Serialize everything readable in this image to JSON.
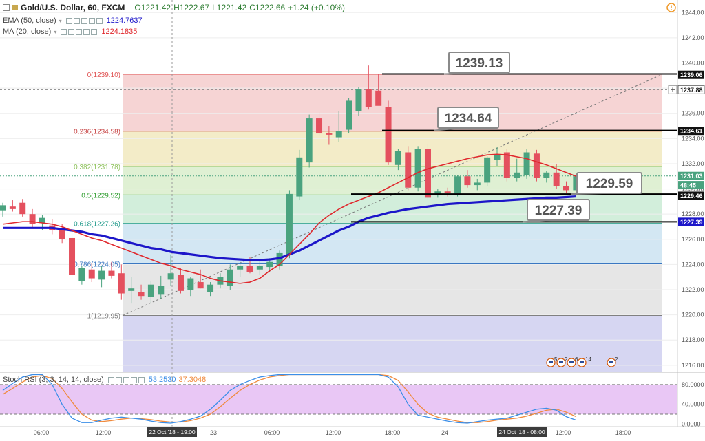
{
  "header": {
    "symbol": "Gold/U.S. Dollar, 60, FXCM",
    "ohlc": {
      "o": "O1221.42",
      "h": "H1222.67",
      "l": "L1221.42",
      "c": "C1222.66",
      "change": "+1.24 (+0.10%)"
    },
    "ema_label": "EMA (50, close)",
    "ema_value": "1224.7637",
    "ma_label": "MA (20, close)",
    "ma_value": "1224.1835",
    "stoch_label": "Stoch RSI (3, 3, 14, 14, close)",
    "stoch_k": "53.2530",
    "stoch_d": "37.3048"
  },
  "colors": {
    "up": "#4aa37f",
    "down": "#e4505e",
    "ema": "#1c16c9",
    "ma": "#e0282d",
    "stoch_k": "#3b8ee8",
    "stoch_d": "#f08a3c",
    "stoch_band": "#e9c7f5"
  },
  "chart_data": [
    {
      "type": "candlestick",
      "ylim": [
        1215.5,
        1245
      ],
      "y_ticks": [
        "1244.00",
        "1242.00",
        "1240.00",
        "1238.00",
        "1236.00",
        "1234.00",
        "1232.00",
        "1230.00",
        "1228.00",
        "1226.00",
        "1224.00",
        "1222.00",
        "1220.00",
        "1218.00",
        "1216.00"
      ],
      "x_ticks": [
        "06:00",
        "12:00",
        "22 Oct '18 - 19:00",
        "23",
        "06:00",
        "12:00",
        "18:00",
        "24",
        "24 Oct '18 - 08:00",
        "12:00",
        "18:00"
      ],
      "candles": [
        [
          1228.3,
          1228.9,
          1227.8,
          1228.7
        ],
        [
          1228.6,
          1229.1,
          1228.2,
          1228.4
        ],
        [
          1228.9,
          1229.2,
          1227.8,
          1228.0
        ],
        [
          1228.0,
          1228.4,
          1226.9,
          1227.2
        ],
        [
          1227.3,
          1227.9,
          1226.7,
          1227.7
        ],
        [
          1227.1,
          1227.6,
          1226.4,
          1226.7
        ],
        [
          1226.8,
          1227.2,
          1225.7,
          1226.0
        ],
        [
          1226.1,
          1226.4,
          1222.9,
          1223.2
        ],
        [
          1222.7,
          1223.9,
          1222.4,
          1223.7
        ],
        [
          1223.6,
          1224.1,
          1222.6,
          1222.9
        ],
        [
          1222.8,
          1223.9,
          1222.2,
          1223.5
        ],
        [
          1223.5,
          1224.2,
          1222.9,
          1223.1
        ],
        [
          1223.3,
          1224.0,
          1221.2,
          1221.7
        ],
        [
          1221.9,
          1223.0,
          1220.9,
          1222.1
        ],
        [
          1221.8,
          1222.4,
          1221.2,
          1221.5
        ],
        [
          1221.4,
          1222.7,
          1220.9,
          1222.4
        ],
        [
          1221.6,
          1223.1,
          1221.3,
          1222.3
        ],
        [
          1222.8,
          1224.8,
          1222.3,
          1223.3
        ],
        [
          1223.2,
          1223.7,
          1221.7,
          1221.9
        ],
        [
          1222.0,
          1223.0,
          1221.5,
          1222.9
        ],
        [
          1222.6,
          1223.6,
          1222.1,
          1222.1
        ],
        [
          1221.8,
          1222.6,
          1221.5,
          1222.4
        ],
        [
          1222.4,
          1223.3,
          1222.1,
          1223.0
        ],
        [
          1222.3,
          1224.0,
          1222.0,
          1223.6
        ],
        [
          1223.6,
          1224.2,
          1223.0,
          1223.9
        ],
        [
          1223.9,
          1224.6,
          1223.3,
          1223.4
        ],
        [
          1223.6,
          1224.3,
          1223.2,
          1223.9
        ],
        [
          1223.8,
          1224.5,
          1223.4,
          1224.2
        ],
        [
          1223.9,
          1225.1,
          1223.6,
          1224.9
        ],
        [
          1224.8,
          1229.9,
          1224.5,
          1229.6
        ],
        [
          1229.4,
          1233.1,
          1229.1,
          1232.5
        ],
        [
          1232.1,
          1235.9,
          1231.7,
          1235.6
        ],
        [
          1235.6,
          1236.1,
          1234.2,
          1234.4
        ],
        [
          1234.4,
          1235.0,
          1233.5,
          1234.3
        ],
        [
          1234.1,
          1236.2,
          1233.7,
          1234.6
        ],
        [
          1234.7,
          1237.2,
          1234.4,
          1237.0
        ],
        [
          1236.2,
          1238.1,
          1235.8,
          1237.9
        ],
        [
          1237.9,
          1239.8,
          1236.3,
          1236.5
        ],
        [
          1237.8,
          1239.1,
          1236.8,
          1236.6
        ],
        [
          1236.5,
          1237.0,
          1231.9,
          1232.1
        ],
        [
          1231.9,
          1233.2,
          1231.5,
          1233.0
        ],
        [
          1232.9,
          1233.4,
          1229.9,
          1230.1
        ],
        [
          1230.1,
          1233.4,
          1229.8,
          1233.2
        ],
        [
          1233.2,
          1233.6,
          1229.1,
          1229.3
        ],
        [
          1229.6,
          1230.0,
          1229.3,
          1229.8
        ],
        [
          1229.8,
          1230.1,
          1229.4,
          1229.7
        ],
        [
          1229.6,
          1231.1,
          1229.4,
          1231.0
        ],
        [
          1231.0,
          1231.5,
          1230.1,
          1230.3
        ],
        [
          1230.3,
          1230.8,
          1229.9,
          1230.5
        ],
        [
          1230.5,
          1232.6,
          1230.2,
          1232.5
        ],
        [
          1232.3,
          1233.3,
          1231.8,
          1232.7
        ],
        [
          1232.9,
          1233.2,
          1230.6,
          1230.9
        ],
        [
          1230.9,
          1232.4,
          1230.6,
          1231.3
        ],
        [
          1231.1,
          1233.2,
          1230.8,
          1232.9
        ],
        [
          1232.8,
          1233.1,
          1230.6,
          1230.9
        ],
        [
          1230.9,
          1231.4,
          1230.5,
          1231.3
        ],
        [
          1231.3,
          1232.0,
          1230.0,
          1230.2
        ],
        [
          1230.2,
          1230.6,
          1229.7,
          1229.9
        ],
        [
          1229.9,
          1231.2,
          1229.7,
          1231.0
        ]
      ],
      "ema_50": [
        1226.9,
        1226.9,
        1226.9,
        1226.9,
        1226.9,
        1226.9,
        1226.8,
        1226.7,
        1226.6,
        1226.4,
        1226.3,
        1226.1,
        1225.9,
        1225.7,
        1225.5,
        1225.3,
        1225.2,
        1225.0,
        1224.9,
        1224.8,
        1224.7,
        1224.6,
        1224.5,
        1224.45,
        1224.4,
        1224.35,
        1224.35,
        1224.4,
        1224.5,
        1224.8,
        1225.1,
        1225.5,
        1225.9,
        1226.3,
        1226.7,
        1227.0,
        1227.4,
        1227.7,
        1227.9,
        1228.1,
        1228.25,
        1228.4,
        1228.5,
        1228.6,
        1228.7,
        1228.8,
        1228.85,
        1228.9,
        1228.95,
        1229.0,
        1229.05,
        1229.1,
        1229.15,
        1229.2,
        1229.25,
        1229.3,
        1229.3,
        1229.35,
        1229.4
      ],
      "ma_20": [
        1227.2,
        1227.3,
        1227.4,
        1227.4,
        1227.3,
        1227.2,
        1227.0,
        1226.7,
        1226.4,
        1226.1,
        1225.9,
        1225.6,
        1225.3,
        1225.0,
        1224.7,
        1224.4,
        1224.1,
        1223.9,
        1223.6,
        1223.4,
        1223.2,
        1222.9,
        1222.7,
        1222.6,
        1222.5,
        1222.6,
        1222.9,
        1223.5,
        1224.0,
        1224.8,
        1225.6,
        1226.4,
        1227.3,
        1227.9,
        1228.4,
        1228.8,
        1229.1,
        1229.4,
        1229.7,
        1230.1,
        1230.5,
        1230.9,
        1231.3,
        1231.6,
        1231.8,
        1232.0,
        1232.2,
        1232.4,
        1232.55,
        1232.7,
        1232.75,
        1232.7,
        1232.55,
        1232.4,
        1232.15,
        1231.9,
        1231.6,
        1231.3,
        1231.0
      ]
    },
    {
      "type": "line",
      "title": "Stoch RSI (3, 3, 14, 14, close)",
      "ylim": [
        -5,
        102
      ],
      "y_ticks": [
        "80.0000",
        "40.0000",
        "0.0000"
      ],
      "band": [
        20,
        80
      ],
      "series": [
        {
          "name": "K",
          "values": [
            68,
            82,
            95,
            100,
            100,
            80,
            40,
            12,
            3,
            3,
            8,
            12,
            14,
            12,
            10,
            6,
            3,
            2,
            5,
            10,
            16,
            30,
            48,
            68,
            80,
            88,
            95,
            98,
            100,
            100,
            100,
            100,
            100,
            100,
            100,
            100,
            100,
            100,
            100,
            95,
            75,
            40,
            18,
            14,
            10,
            6,
            3,
            2,
            5,
            8,
            10,
            12,
            18,
            24,
            30,
            32,
            28,
            15,
            8
          ]
        },
        {
          "name": "D",
          "values": [
            60,
            72,
            85,
            95,
            98,
            92,
            72,
            45,
            20,
            8,
            5,
            7,
            10,
            12,
            11,
            9,
            6,
            4,
            4,
            7,
            12,
            20,
            35,
            52,
            68,
            80,
            89,
            95,
            98,
            100,
            100,
            100,
            100,
            100,
            100,
            100,
            100,
            100,
            100,
            98,
            88,
            65,
            40,
            22,
            14,
            10,
            6,
            3,
            3,
            5,
            8,
            10,
            12,
            16,
            22,
            28,
            30,
            24,
            15
          ]
        }
      ]
    }
  ],
  "fib_levels": [
    {
      "label": "0(1239.10)",
      "value": 1239.1,
      "color": "#e05353"
    },
    {
      "label": "0.236(1234.58)",
      "value": 1234.58,
      "color": "#c74343"
    },
    {
      "label": "0.382(1231.78)",
      "value": 1231.78,
      "color": "#8fc25d"
    },
    {
      "label": "0.5(1229.52)",
      "value": 1229.52,
      "color": "#2e9d2e"
    },
    {
      "label": "0.618(1227.26)",
      "value": 1227.26,
      "color": "#1f9a8a"
    },
    {
      "label": "0.786(1224.05)",
      "value": 1224.05,
      "color": "#3b78c2"
    },
    {
      "label": "1(1219.95)",
      "value": 1219.95,
      "color": "#808080"
    }
  ],
  "callouts": [
    {
      "text": "1239.13",
      "value": 1239.13
    },
    {
      "text": "1234.64",
      "value": 1234.64
    },
    {
      "text": "1229.59",
      "value": 1229.59
    },
    {
      "text": "1227.39",
      "value": 1227.39
    }
  ],
  "price_labels": [
    {
      "text": "1239.06",
      "value": 1239.06,
      "bg": "#111111"
    },
    {
      "text": "1237.88",
      "value": 1237.88,
      "bg": "#ffffff",
      "fg": "#222222",
      "border": true
    },
    {
      "text": "1234.61",
      "value": 1234.61,
      "bg": "#111111"
    },
    {
      "text": "1231.03",
      "value": 1231.03,
      "bg": "#4aa37f"
    },
    {
      "text": "48:45",
      "value": 1230.3,
      "bg": "#4aa37f"
    },
    {
      "text": "1229.46",
      "value": 1229.46,
      "bg": "#111111"
    },
    {
      "text": "1227.39",
      "value": 1227.39,
      "bg": "#1c16c9"
    }
  ],
  "events": {
    "badges": [
      "5",
      "2",
      "6",
      "14",
      "2"
    ]
  }
}
